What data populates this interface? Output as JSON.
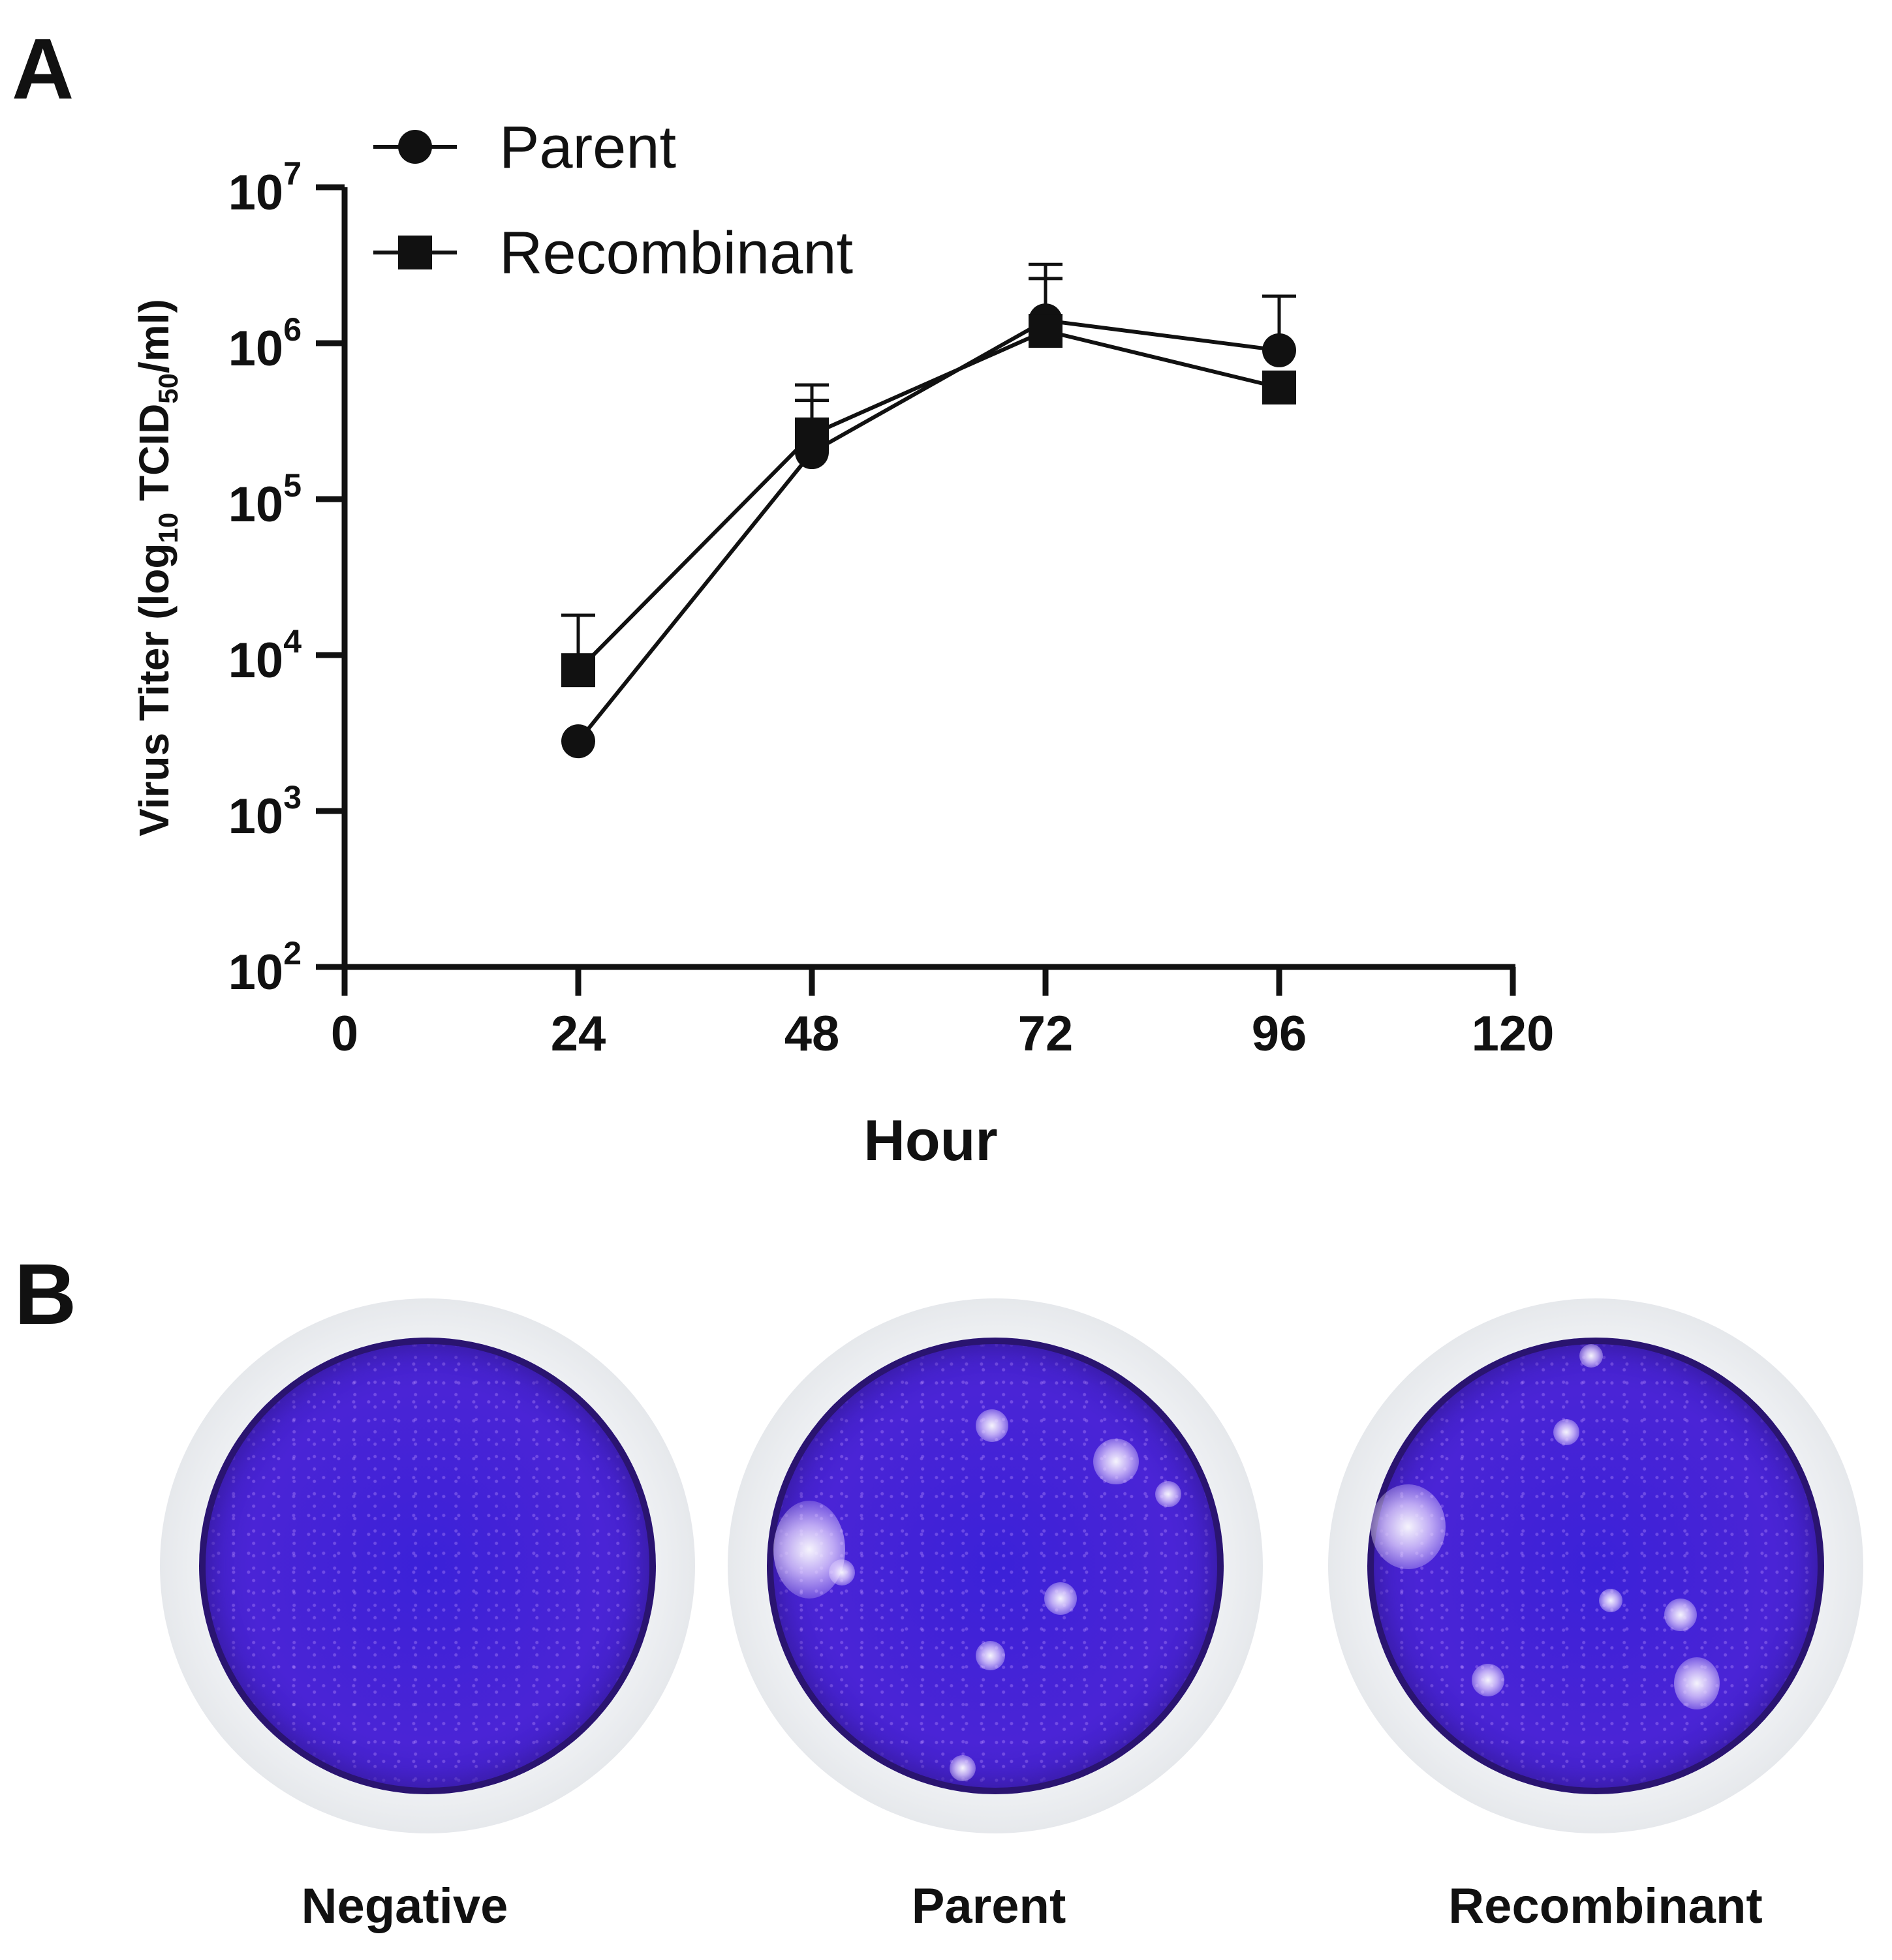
{
  "panels": {
    "a_label": "A",
    "b_label": "B"
  },
  "chart_data": {
    "type": "line",
    "xlabel": "Hour",
    "ylabel": "Virus Titer (log",
    "ylabel_sub1": "10",
    "ylabel_mid": " TCID",
    "ylabel_sub2": "50",
    "ylabel_end": "/ml)",
    "xlim": [
      0,
      120
    ],
    "xticks": [
      0,
      24,
      48,
      72,
      96,
      120
    ],
    "yscale": "log",
    "ylim": [
      100,
      10000000
    ],
    "yticks": [
      {
        "base": "10",
        "exp": "2",
        "value": 100
      },
      {
        "base": "10",
        "exp": "3",
        "value": 1000
      },
      {
        "base": "10",
        "exp": "4",
        "value": 10000
      },
      {
        "base": "10",
        "exp": "5",
        "value": 100000
      },
      {
        "base": "10",
        "exp": "6",
        "value": 1000000
      },
      {
        "base": "10",
        "exp": "7",
        "value": 10000000
      }
    ],
    "legend_position": "top-left",
    "grid": false,
    "series": [
      {
        "name": "Parent",
        "marker": "circle",
        "x": [
          24,
          48,
          72,
          96
        ],
        "y": [
          2800,
          200000,
          1400000,
          900000
        ],
        "err_upper": [
          null,
          430000,
          3200000,
          2000000
        ]
      },
      {
        "name": "Recombinant",
        "marker": "square",
        "x": [
          24,
          48,
          72,
          96
        ],
        "y": [
          8000,
          260000,
          1200000,
          520000
        ],
        "err_upper": [
          18000,
          540000,
          2600000,
          null
        ]
      }
    ]
  },
  "wells": [
    {
      "label": "Negative"
    },
    {
      "label": "Parent"
    },
    {
      "label": "Recombinant"
    }
  ]
}
